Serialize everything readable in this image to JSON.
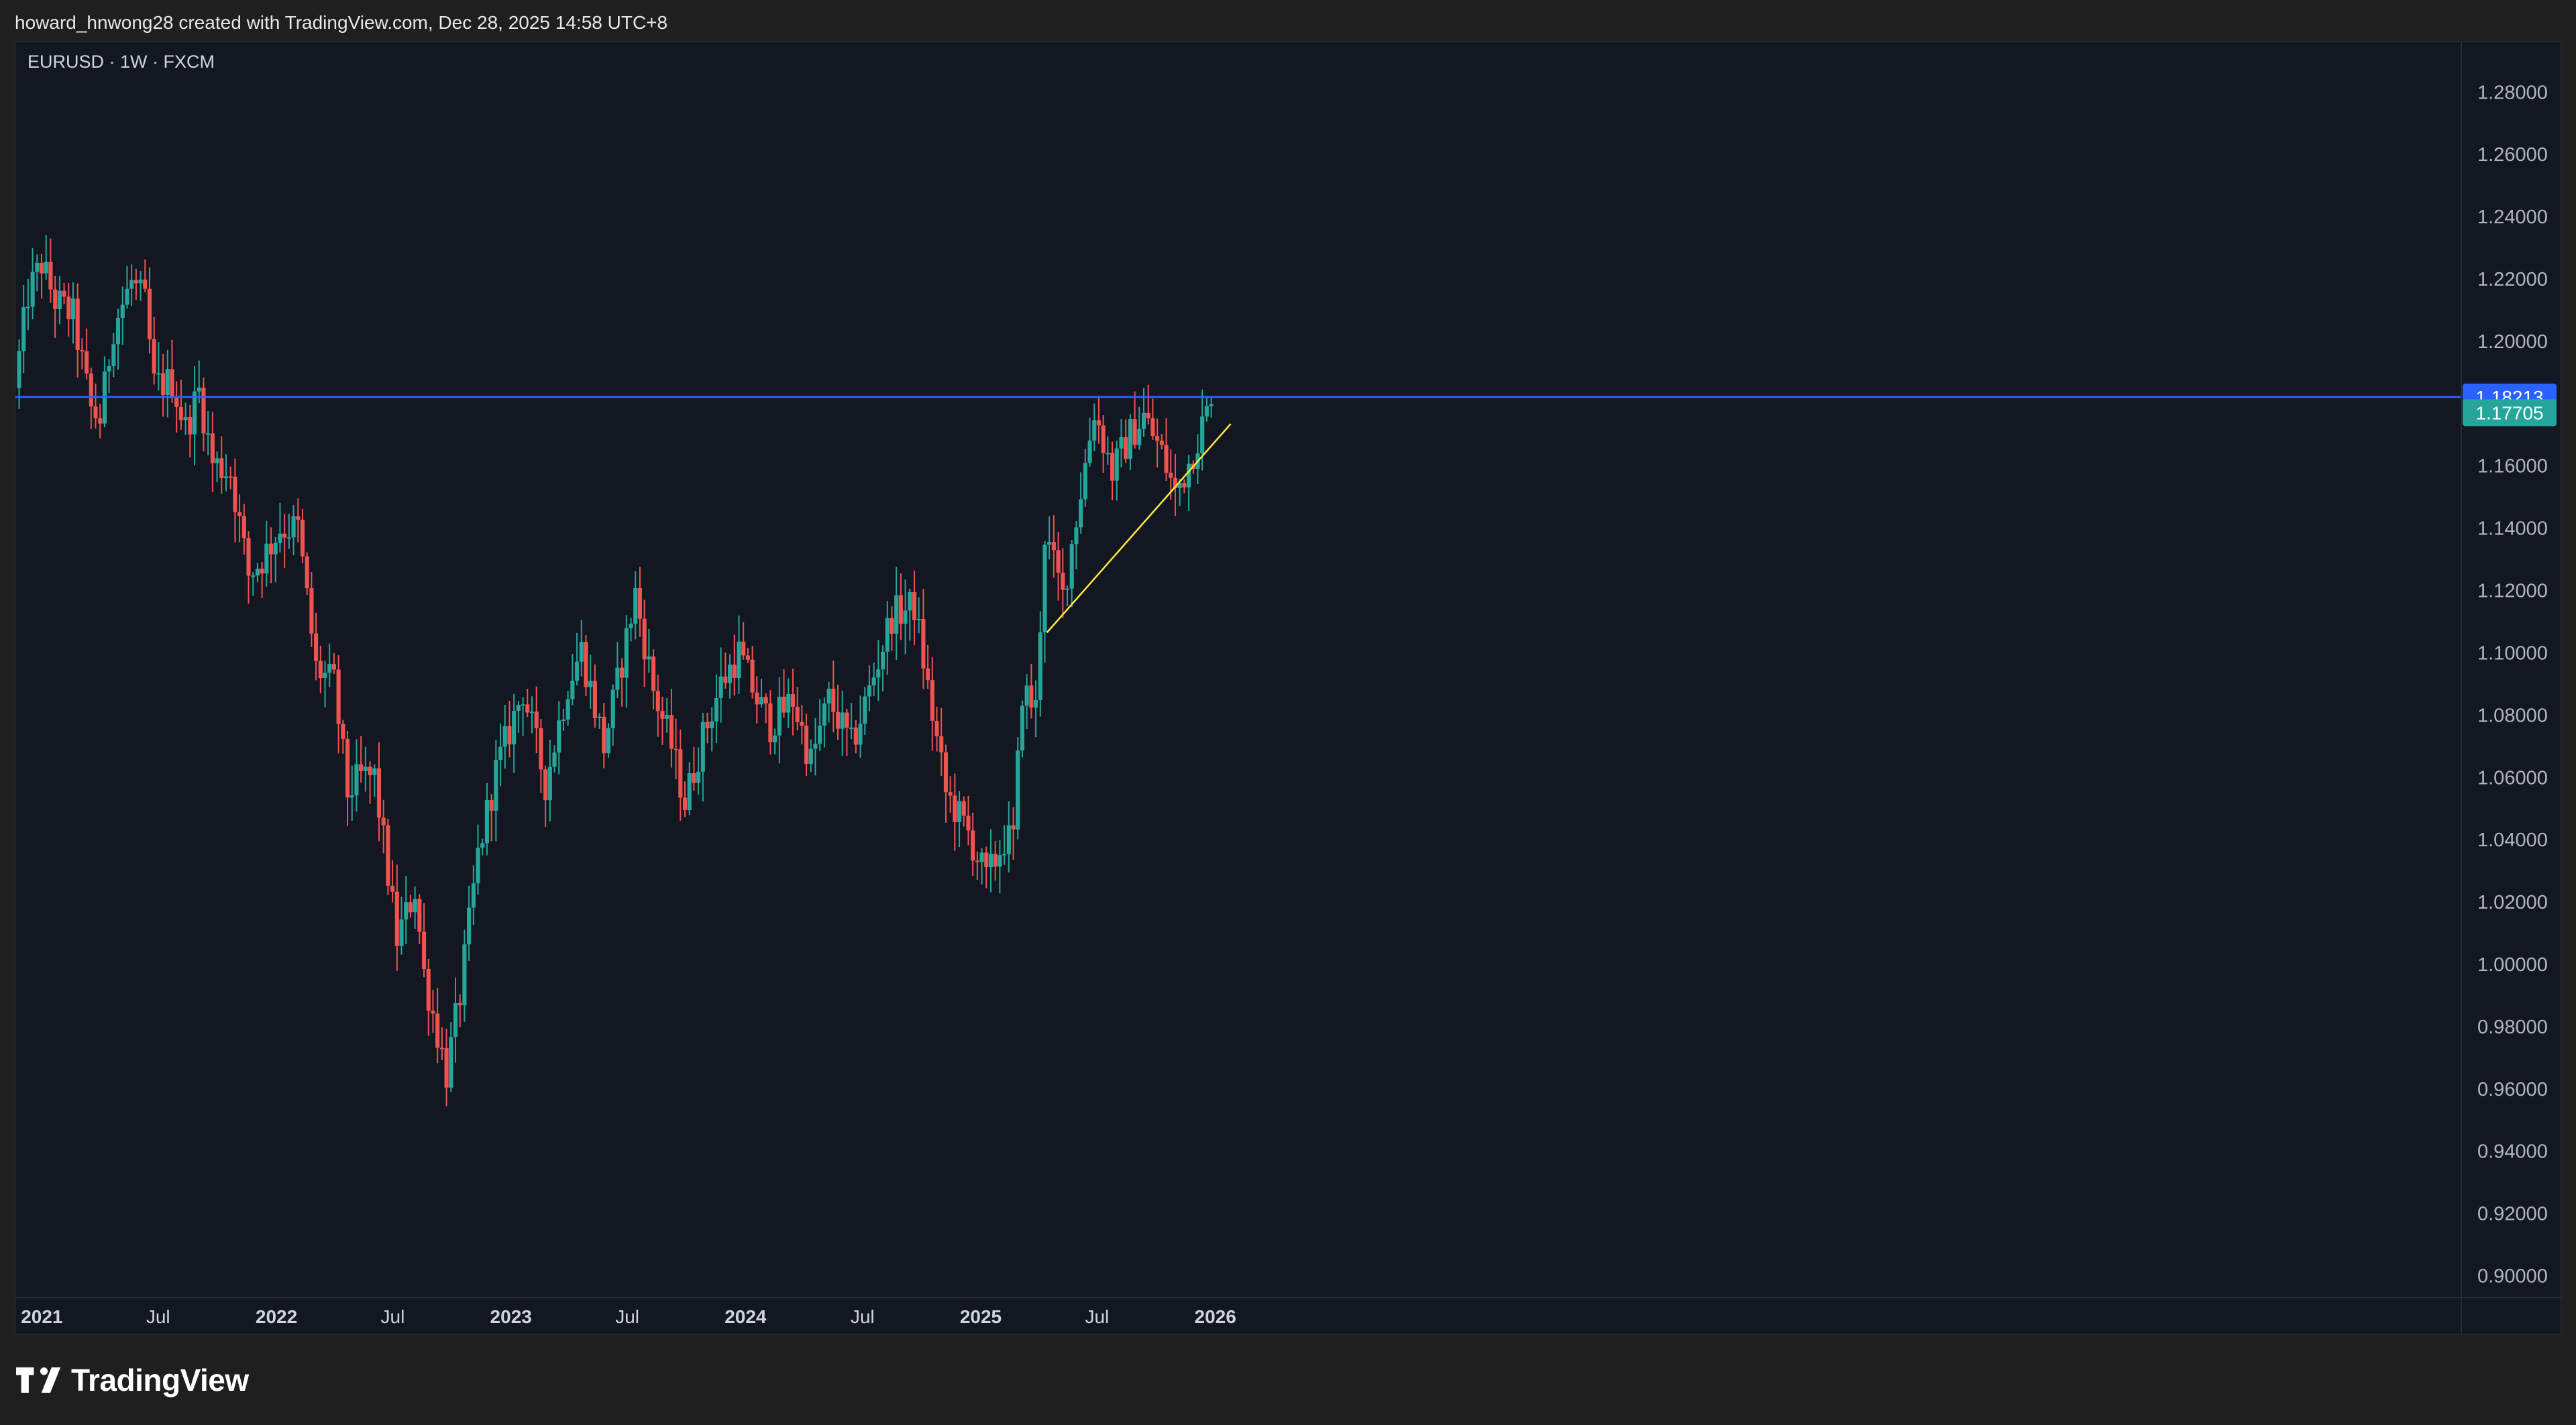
{
  "credit": "howard_hnwong28 created with TradingView.com, Dec 28, 2025 14:58 UTC+8",
  "symbol": "EURUSD · 1W · FXCM",
  "brand": "TradingView",
  "colors": {
    "up": "#26a69a",
    "down": "#ef5350",
    "background": "#131722",
    "horizontal_line": "#2962ff",
    "trend_line": "#ffeb3b",
    "current_price_tag": "#26a69a"
  },
  "chart_data": {
    "type": "candlestick",
    "interval": "1W",
    "ylim": [
      0.893,
      1.296
    ],
    "y_ticks": [
      "1.28000",
      "1.26000",
      "1.24000",
      "1.22000",
      "1.20000",
      "1.18000",
      "1.16000",
      "1.14000",
      "1.12000",
      "1.10000",
      "1.08000",
      "1.06000",
      "1.04000",
      "1.02000",
      "1.00000",
      "0.98000",
      "0.96000",
      "0.94000",
      "0.92000",
      "0.90000"
    ],
    "x_ticks": [
      {
        "label": "2021",
        "date": "2021-01-01",
        "bold": true
      },
      {
        "label": "Jul",
        "date": "2021-07-01",
        "bold": false
      },
      {
        "label": "2022",
        "date": "2022-01-01",
        "bold": true
      },
      {
        "label": "Jul",
        "date": "2022-07-01",
        "bold": false
      },
      {
        "label": "2023",
        "date": "2023-01-01",
        "bold": true
      },
      {
        "label": "Jul",
        "date": "2023-07-01",
        "bold": false
      },
      {
        "label": "2024",
        "date": "2024-01-01",
        "bold": true
      },
      {
        "label": "Jul",
        "date": "2024-07-01",
        "bold": false
      },
      {
        "label": "2025",
        "date": "2025-01-01",
        "bold": true
      },
      {
        "label": "Jul",
        "date": "2025-07-01",
        "bold": false
      },
      {
        "label": "2026",
        "date": "2026-01-01",
        "bold": true
      }
    ],
    "horizontal_line": {
      "price": 1.18213,
      "label": "1.18213"
    },
    "last_price": {
      "price": 1.17705,
      "label": "1.17705"
    },
    "trend_line": {
      "start": {
        "date": "2025-04-14",
        "price": 1.1065
      },
      "end": {
        "date": "2026-01-25",
        "price": 1.1735
      }
    },
    "monthly_path": [
      {
        "date": "2020-11-23",
        "price": 1.185
      },
      {
        "date": "2020-12-14",
        "price": 1.215
      },
      {
        "date": "2021-01-04",
        "price": 1.225
      },
      {
        "date": "2021-01-25",
        "price": 1.213
      },
      {
        "date": "2021-02-22",
        "price": 1.208
      },
      {
        "date": "2021-03-22",
        "price": 1.178
      },
      {
        "date": "2021-04-05",
        "price": 1.175
      },
      {
        "date": "2021-04-26",
        "price": 1.205
      },
      {
        "date": "2021-05-24",
        "price": 1.219
      },
      {
        "date": "2021-06-14",
        "price": 1.212
      },
      {
        "date": "2021-06-28",
        "price": 1.186
      },
      {
        "date": "2021-07-26",
        "price": 1.187
      },
      {
        "date": "2021-08-16",
        "price": 1.172
      },
      {
        "date": "2021-09-06",
        "price": 1.184
      },
      {
        "date": "2021-09-27",
        "price": 1.161
      },
      {
        "date": "2021-10-25",
        "price": 1.158
      },
      {
        "date": "2021-11-22",
        "price": 1.125
      },
      {
        "date": "2021-12-13",
        "price": 1.13
      },
      {
        "date": "2022-01-10",
        "price": 1.14
      },
      {
        "date": "2022-02-07",
        "price": 1.14
      },
      {
        "date": "2022-03-07",
        "price": 1.095
      },
      {
        "date": "2022-04-04",
        "price": 1.09
      },
      {
        "date": "2022-04-25",
        "price": 1.055
      },
      {
        "date": "2022-05-16",
        "price": 1.06
      },
      {
        "date": "2022-06-06",
        "price": 1.06
      },
      {
        "date": "2022-07-11",
        "price": 1.008
      },
      {
        "date": "2022-08-08",
        "price": 1.024
      },
      {
        "date": "2022-08-22",
        "price": 0.997
      },
      {
        "date": "2022-09-26",
        "price": 0.965
      },
      {
        "date": "2022-10-17",
        "price": 0.99
      },
      {
        "date": "2022-11-14",
        "price": 1.035
      },
      {
        "date": "2022-12-12",
        "price": 1.062
      },
      {
        "date": "2023-01-23",
        "price": 1.088
      },
      {
        "date": "2023-02-27",
        "price": 1.058
      },
      {
        "date": "2023-04-03",
        "price": 1.09
      },
      {
        "date": "2023-04-24",
        "price": 1.101
      },
      {
        "date": "2023-05-29",
        "price": 1.07
      },
      {
        "date": "2023-06-19",
        "price": 1.09
      },
      {
        "date": "2023-07-17",
        "price": 1.119
      },
      {
        "date": "2023-08-14",
        "price": 1.088
      },
      {
        "date": "2023-09-11",
        "price": 1.07
      },
      {
        "date": "2023-10-02",
        "price": 1.052
      },
      {
        "date": "2023-10-30",
        "price": 1.073
      },
      {
        "date": "2023-11-27",
        "price": 1.09
      },
      {
        "date": "2023-12-25",
        "price": 1.1
      },
      {
        "date": "2024-01-22",
        "price": 1.085
      },
      {
        "date": "2024-02-12",
        "price": 1.077
      },
      {
        "date": "2024-03-18",
        "price": 1.085
      },
      {
        "date": "2024-04-15",
        "price": 1.065
      },
      {
        "date": "2024-05-13",
        "price": 1.085
      },
      {
        "date": "2024-06-17",
        "price": 1.07
      },
      {
        "date": "2024-07-15",
        "price": 1.088
      },
      {
        "date": "2024-08-19",
        "price": 1.112
      },
      {
        "date": "2024-09-23",
        "price": 1.115
      },
      {
        "date": "2024-10-21",
        "price": 1.08
      },
      {
        "date": "2024-11-11",
        "price": 1.055
      },
      {
        "date": "2024-11-25",
        "price": 1.05
      },
      {
        "date": "2024-12-16",
        "price": 1.042
      },
      {
        "date": "2025-01-13",
        "price": 1.027
      },
      {
        "date": "2025-02-10",
        "price": 1.04
      },
      {
        "date": "2025-02-24",
        "price": 1.04
      },
      {
        "date": "2025-03-10",
        "price": 1.088
      },
      {
        "date": "2025-03-31",
        "price": 1.082
      },
      {
        "date": "2025-04-14",
        "price": 1.138
      },
      {
        "date": "2025-05-12",
        "price": 1.118
      },
      {
        "date": "2025-06-09",
        "price": 1.152
      },
      {
        "date": "2025-06-30",
        "price": 1.178
      },
      {
        "date": "2025-07-28",
        "price": 1.158
      },
      {
        "date": "2025-08-25",
        "price": 1.17
      },
      {
        "date": "2025-09-15",
        "price": 1.176
      },
      {
        "date": "2025-10-13",
        "price": 1.164
      },
      {
        "date": "2025-11-03",
        "price": 1.151
      },
      {
        "date": "2025-11-24",
        "price": 1.161
      },
      {
        "date": "2025-12-22",
        "price": 1.177
      }
    ]
  }
}
